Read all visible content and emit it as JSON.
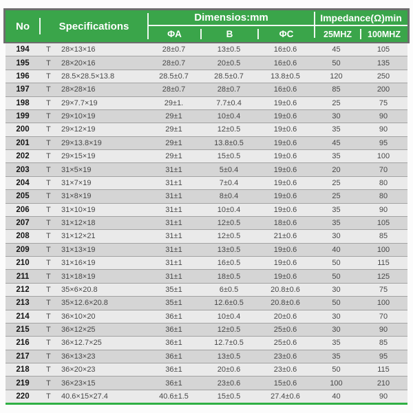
{
  "header": {
    "no_label": "No",
    "specifications_label": "Specifications",
    "dimensions_group_label": "Dimensios:mm",
    "impedance_group_label": "Impedance(Ω)min",
    "col_phi_a": "ΦA",
    "col_b": "B",
    "col_phi_c": "ΦC",
    "col_25mhz": "25MHZ",
    "col_100mhz": "100MHZ"
  },
  "colors": {
    "header_green": "#3aa54a",
    "header_border_gray": "#6d6d6d",
    "row_light": "#eaeaea",
    "row_dark": "#d5d5d5",
    "row_separator": "#a2a2a2",
    "bottom_rule_green": "#2fb044",
    "header_text": "#ffffff",
    "body_text": "#474747"
  },
  "table": {
    "rows": [
      {
        "no": "194",
        "prefix": "T",
        "dims": "28×13×16",
        "phi_a": "28±0.7",
        "b": "13±0.5",
        "phi_c": "16±0.6",
        "imp25": "45",
        "imp100": "105"
      },
      {
        "no": "195",
        "prefix": "T",
        "dims": "28×20×16",
        "phi_a": "28±0.7",
        "b": "20±0.5",
        "phi_c": "16±0.6",
        "imp25": "50",
        "imp100": "135"
      },
      {
        "no": "196",
        "prefix": "T",
        "dims": "28.5×28.5×13.8",
        "phi_a": "28.5±0.7",
        "b": "28.5±0.7",
        "phi_c": "13.8±0.5",
        "imp25": "120",
        "imp100": "250"
      },
      {
        "no": "197",
        "prefix": "T",
        "dims": "28×28×16",
        "phi_a": "28±0.7",
        "b": "28±0.7",
        "phi_c": "16±0.6",
        "imp25": "85",
        "imp100": "200"
      },
      {
        "no": "198",
        "prefix": "T",
        "dims": "29×7.7×19",
        "phi_a": "29±1.",
        "b": "7.7±0.4",
        "phi_c": "19±0.6",
        "imp25": "25",
        "imp100": "75"
      },
      {
        "no": "199",
        "prefix": "T",
        "dims": "29×10×19",
        "phi_a": "29±1",
        "b": "10±0.4",
        "phi_c": "19±0.6",
        "imp25": "30",
        "imp100": "90"
      },
      {
        "no": "200",
        "prefix": "T",
        "dims": "29×12×19",
        "phi_a": "29±1",
        "b": "12±0.5",
        "phi_c": "19±0.6",
        "imp25": "35",
        "imp100": "90"
      },
      {
        "no": "201",
        "prefix": "T",
        "dims": "29×13.8×19",
        "phi_a": "29±1",
        "b": "13.8±0.5",
        "phi_c": "19±0.6",
        "imp25": "45",
        "imp100": "95"
      },
      {
        "no": "202",
        "prefix": "T",
        "dims": "29×15×19",
        "phi_a": "29±1",
        "b": "15±0.5",
        "phi_c": "19±0.6",
        "imp25": "35",
        "imp100": "100"
      },
      {
        "no": "203",
        "prefix": "T",
        "dims": "31×5×19",
        "phi_a": "31±1",
        "b": "5±0.4",
        "phi_c": "19±0.6",
        "imp25": "20",
        "imp100": "70"
      },
      {
        "no": "204",
        "prefix": "T",
        "dims": "31×7×19",
        "phi_a": "31±1",
        "b": "7±0.4",
        "phi_c": "19±0.6",
        "imp25": "25",
        "imp100": "80"
      },
      {
        "no": "205",
        "prefix": "T",
        "dims": "31×8×19",
        "phi_a": "31±1",
        "b": "8±0.4",
        "phi_c": "19±0.6",
        "imp25": "25",
        "imp100": "80"
      },
      {
        "no": "206",
        "prefix": "T",
        "dims": "31×10×19",
        "phi_a": "31±1",
        "b": "10±0.4",
        "phi_c": "19±0.6",
        "imp25": "35",
        "imp100": "90"
      },
      {
        "no": "207",
        "prefix": "T",
        "dims": "31×12×18",
        "phi_a": "31±1",
        "b": "12±0.5",
        "phi_c": "18±0.6",
        "imp25": "35",
        "imp100": "105"
      },
      {
        "no": "208",
        "prefix": "T",
        "dims": "31×12×21",
        "phi_a": "31±1",
        "b": "12±0.5",
        "phi_c": "21±0.6",
        "imp25": "30",
        "imp100": "85"
      },
      {
        "no": "209",
        "prefix": "T",
        "dims": "31×13×19",
        "phi_a": "31±1",
        "b": "13±0.5",
        "phi_c": "19±0.6",
        "imp25": "40",
        "imp100": "100"
      },
      {
        "no": "210",
        "prefix": "T",
        "dims": "31×16×19",
        "phi_a": "31±1",
        "b": "16±0.5",
        "phi_c": "19±0.6",
        "imp25": "50",
        "imp100": "115"
      },
      {
        "no": "211",
        "prefix": "T",
        "dims": "31×18×19",
        "phi_a": "31±1",
        "b": "18±0.5",
        "phi_c": "19±0.6",
        "imp25": "50",
        "imp100": "125"
      },
      {
        "no": "212",
        "prefix": "T",
        "dims": "35×6×20.8",
        "phi_a": "35±1",
        "b": "6±0.5",
        "phi_c": "20.8±0.6",
        "imp25": "30",
        "imp100": "75"
      },
      {
        "no": "213",
        "prefix": "T",
        "dims": "35×12.6×20.8",
        "phi_a": "35±1",
        "b": "12.6±0.5",
        "phi_c": "20.8±0.6",
        "imp25": "50",
        "imp100": "100"
      },
      {
        "no": "214",
        "prefix": "T",
        "dims": "36×10×20",
        "phi_a": "36±1",
        "b": "10±0.4",
        "phi_c": "20±0.6",
        "imp25": "30",
        "imp100": "70"
      },
      {
        "no": "215",
        "prefix": "T",
        "dims": "36×12×25",
        "phi_a": "36±1",
        "b": "12±0.5",
        "phi_c": "25±0.6",
        "imp25": "30",
        "imp100": "90"
      },
      {
        "no": "216",
        "prefix": "T",
        "dims": "36×12.7×25",
        "phi_a": "36±1",
        "b": "12.7±0.5",
        "phi_c": "25±0.6",
        "imp25": "35",
        "imp100": "85"
      },
      {
        "no": "217",
        "prefix": "T",
        "dims": "36×13×23",
        "phi_a": "36±1",
        "b": "13±0.5",
        "phi_c": "23±0.6",
        "imp25": "35",
        "imp100": "95"
      },
      {
        "no": "218",
        "prefix": "T",
        "dims": "36×20×23",
        "phi_a": "36±1",
        "b": "20±0.6",
        "phi_c": "23±0.6",
        "imp25": "50",
        "imp100": "115"
      },
      {
        "no": "219",
        "prefix": "T",
        "dims": "36×23×15",
        "phi_a": "36±1",
        "b": "23±0.6",
        "phi_c": "15±0.6",
        "imp25": "100",
        "imp100": "210"
      },
      {
        "no": "220",
        "prefix": "T",
        "dims": "40.6×15×27.4",
        "phi_a": "40.6±1.5",
        "b": "15±0.5",
        "phi_c": "27.4±0.6",
        "imp25": "40",
        "imp100": "90"
      }
    ]
  }
}
